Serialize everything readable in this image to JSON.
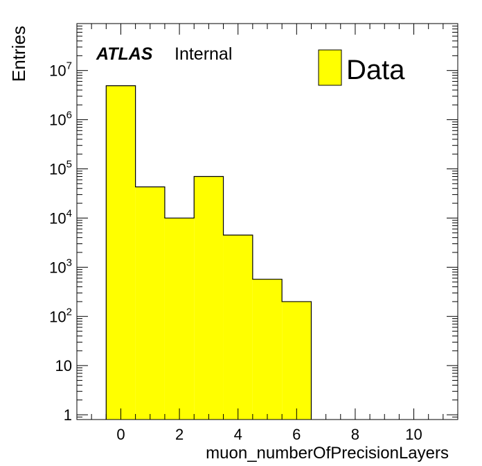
{
  "chart_data": {
    "type": "bar",
    "histogram": true,
    "bin_edges": [
      -0.5,
      0.5,
      1.5,
      2.5,
      3.5,
      4.5,
      5.5,
      6.5
    ],
    "bin_centers": [
      0,
      1,
      2,
      3,
      4,
      5,
      6
    ],
    "values": [
      4900000,
      43000,
      10000,
      70000,
      4500,
      570,
      200
    ],
    "xlabel": "muon_numberOfPrecisionLayers",
    "ylabel": "Entries",
    "xlim": [
      -1.5,
      11.5
    ],
    "ylim": [
      0.8,
      90000000
    ],
    "log_y": true,
    "grid": false,
    "legend_position": "top-right",
    "fill_color": "#ffff00",
    "line_color": "#000000",
    "series": [
      {
        "name": "Data",
        "values": [
          4900000,
          43000,
          10000,
          70000,
          4500,
          570,
          200
        ]
      }
    ],
    "x_ticks": [
      {
        "value": 0,
        "label": "0"
      },
      {
        "value": 2,
        "label": "2"
      },
      {
        "value": 4,
        "label": "4"
      },
      {
        "value": 6,
        "label": "6"
      },
      {
        "value": 8,
        "label": "8"
      },
      {
        "value": 10,
        "label": "10"
      }
    ],
    "y_ticks": [
      {
        "value": 1,
        "base": "1",
        "exp": ""
      },
      {
        "value": 10,
        "base": "10",
        "exp": ""
      },
      {
        "value": 100,
        "base": "10",
        "exp": "2"
      },
      {
        "value": 1000,
        "base": "10",
        "exp": "3"
      },
      {
        "value": 10000,
        "base": "10",
        "exp": "4"
      },
      {
        "value": 100000,
        "base": "10",
        "exp": "5"
      },
      {
        "value": 1000000,
        "base": "10",
        "exp": "6"
      },
      {
        "value": 10000000,
        "base": "10",
        "exp": "7"
      }
    ]
  },
  "label": {
    "experiment": "ATLAS",
    "status": "Internal"
  },
  "legend": {
    "entry": "Data"
  }
}
